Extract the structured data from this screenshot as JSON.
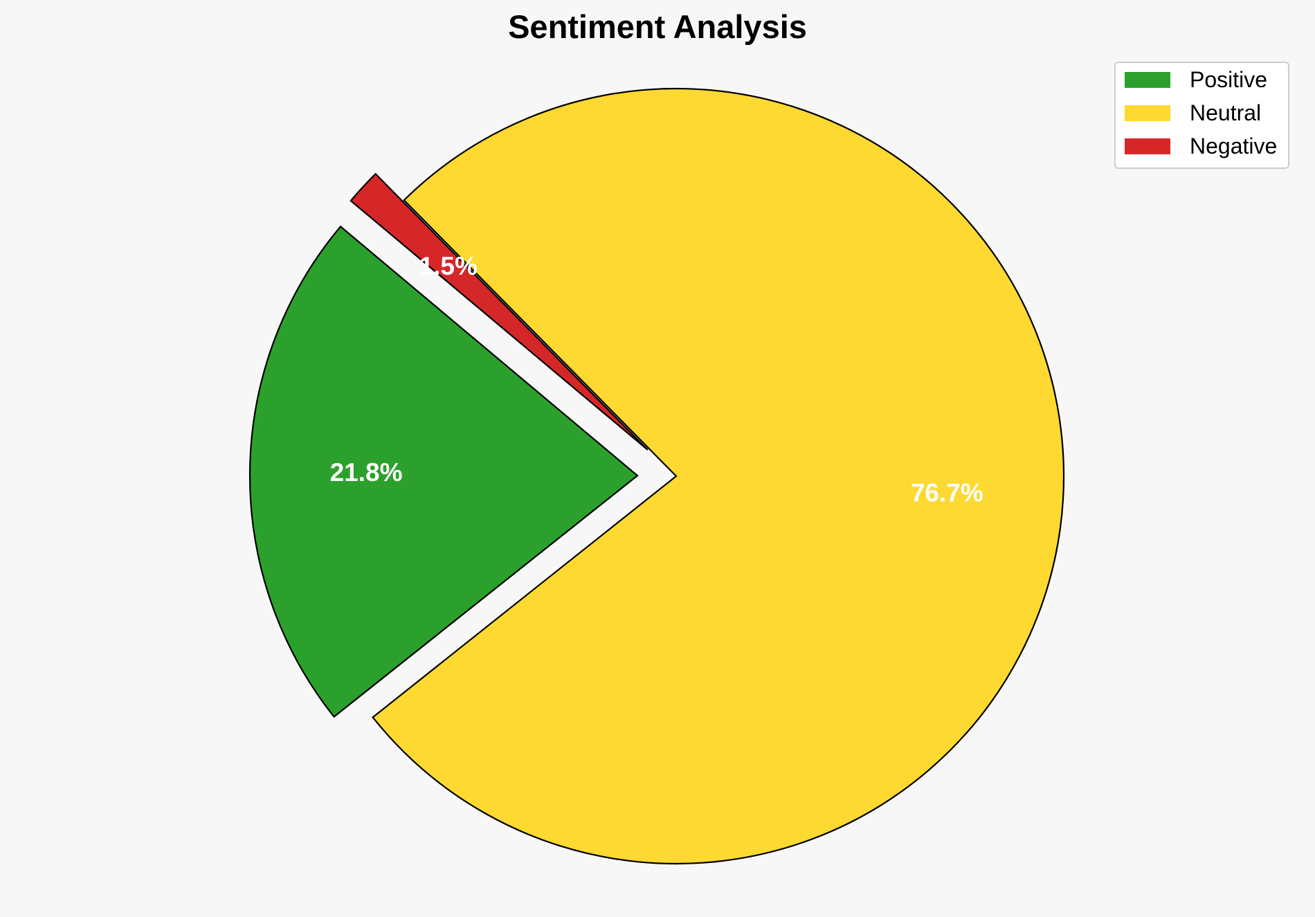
{
  "chart_data": {
    "type": "pie",
    "title": "Sentiment Analysis",
    "start_angle_deg": 140,
    "direction": "counterclockwise",
    "legend_position": "top-right",
    "slices": [
      {
        "label": "Positive",
        "value": 21.8,
        "pct_label": "21.8%",
        "color": "#2ca02c",
        "exploded": true
      },
      {
        "label": "Neutral",
        "value": 76.7,
        "pct_label": "76.7%",
        "color": "#fdd931",
        "exploded": false
      },
      {
        "label": "Negative",
        "value": 1.5,
        "pct_label": "1.5%",
        "color": "#d62728",
        "exploded": true
      }
    ]
  },
  "style": {
    "background": "#f7f7f7",
    "edge_color": "#000000",
    "label_color": "#ffffff"
  }
}
